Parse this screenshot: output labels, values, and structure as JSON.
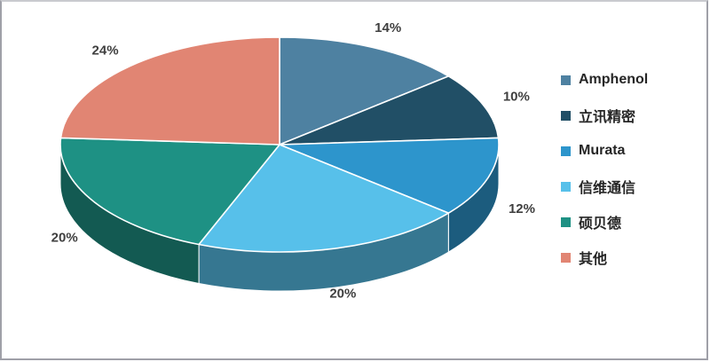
{
  "frame": {
    "background": "#ffffff",
    "border_color": "#9fa0a8"
  },
  "chart_data": {
    "type": "pie",
    "style": "3d",
    "title": "",
    "direction": "clockwise",
    "start_angle_deg": 0,
    "legend_position": "right",
    "categories": [
      "Amphenol",
      "立讯精密",
      "Murata",
      "信维通信",
      "硕贝德",
      "其他"
    ],
    "values": [
      14,
      10,
      12,
      20,
      20,
      24
    ],
    "value_labels": [
      "14%",
      "10%",
      "12%",
      "20%",
      "20%",
      "24%"
    ],
    "colors": [
      "#4e81a1",
      "#214f66",
      "#2d95cc",
      "#57c0ea",
      "#1e9184",
      "#e18573"
    ],
    "separator_color": "#ffffff",
    "value_label_color": "#3f3f3f"
  }
}
